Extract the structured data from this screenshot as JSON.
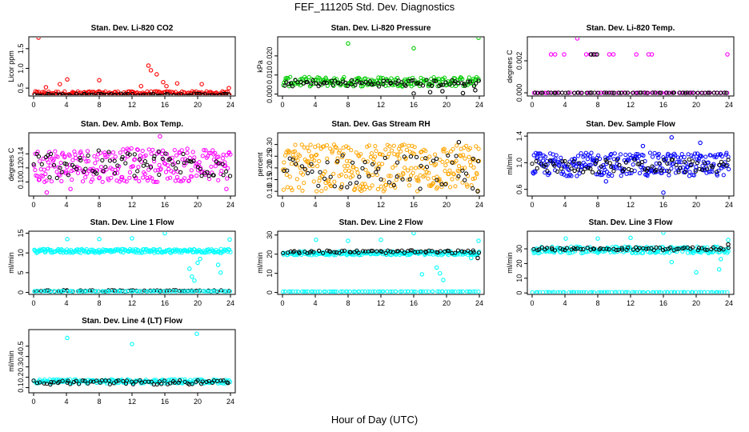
{
  "title": "FEF_111205  Std. Dev. Diagnostics",
  "x_caption": "Hour of Day (UTC)",
  "colors": {
    "co2": "#ff0000",
    "pressure": "#00cc00",
    "temp": "#ff00ff",
    "box": "#ff00ff",
    "rh": "#ffa500",
    "flow": "#0000ff",
    "line": "#00ffff",
    "ref": "#000000"
  },
  "chart_data": [
    {
      "id": "co2",
      "type": "scatter",
      "title": "Stan. Dev. Li-820 CO2",
      "ylabel": "Licor ppm",
      "xlim": [
        0,
        24
      ],
      "xticks": [
        0,
        4,
        8,
        12,
        16,
        20,
        24
      ],
      "ylim": [
        0.3,
        1.8
      ],
      "yticks": [
        0.5,
        1.0,
        1.5
      ],
      "ytick_labels": [
        "0.5",
        "1.0",
        "1.5"
      ],
      "series": [
        {
          "color": "co2",
          "noise": {
            "type": "band",
            "lo": 0.32,
            "hi": 0.42,
            "n": 180
          },
          "outliers": [
            [
              0.6,
              1.78
            ],
            [
              1.5,
              0.52
            ],
            [
              3.2,
              0.6
            ],
            [
              4.1,
              0.72
            ],
            [
              8.0,
              0.7
            ],
            [
              13.1,
              0.55
            ],
            [
              14.0,
              1.07
            ],
            [
              14.3,
              0.95
            ],
            [
              15.0,
              0.85
            ],
            [
              15.8,
              0.65
            ],
            [
              16.2,
              0.55
            ],
            [
              17.5,
              0.62
            ],
            [
              20.5,
              0.6
            ],
            [
              23.8,
              0.5
            ]
          ]
        },
        {
          "color": "ref",
          "noise": {
            "type": "band",
            "lo": 0.3,
            "hi": 0.36,
            "n": 90
          },
          "outliers": []
        }
      ]
    },
    {
      "id": "pressure",
      "type": "scatter",
      "title": "Stan. Dev. Li-820 Pressure",
      "ylabel": "kPa",
      "xlim": [
        0,
        24
      ],
      "xticks": [
        0,
        4,
        8,
        12,
        16,
        20,
        24
      ],
      "ylim": [
        -0.001,
        0.03
      ],
      "yticks": [
        0.0,
        0.01,
        0.02
      ],
      "ytick_labels": [
        "0.000",
        "0.010",
        "0.020"
      ],
      "series": [
        {
          "color": "pressure",
          "noise": {
            "type": "band",
            "lo": 0.004,
            "hi": 0.009,
            "n": 200
          },
          "outliers": [
            [
              8.0,
              0.0265
            ],
            [
              16.0,
              0.024
            ],
            [
              23.9,
              0.0295
            ]
          ]
        },
        {
          "color": "ref",
          "noise": {
            "type": "band",
            "lo": 0.004,
            "hi": 0.0075,
            "n": 80
          },
          "outliers": [
            [
              16.0,
              0.0003
            ],
            [
              18.0,
              0.001
            ],
            [
              19.5,
              0.0015
            ],
            [
              22.0,
              0.0005
            ],
            [
              23.5,
              0.002
            ]
          ]
        }
      ]
    },
    {
      "id": "temp",
      "type": "scatter",
      "title": "Stan. Dev. Li-820 Temp.",
      "ylabel": "degrees C",
      "xlim": [
        0,
        24
      ],
      "xticks": [
        0,
        4,
        8,
        12,
        16,
        20,
        24
      ],
      "ylim": [
        -0.0002,
        0.0035
      ],
      "yticks": [
        0.0,
        0.002
      ],
      "ytick_labels": [
        "0.000",
        "0.002"
      ],
      "series": [
        {
          "color": "temp",
          "noise": {
            "type": "line",
            "y": 0.0,
            "n": 60
          },
          "outliers": [
            [
              2.3,
              0.0024
            ],
            [
              2.8,
              0.0024
            ],
            [
              3.9,
              0.0024
            ],
            [
              5.5,
              0.0034
            ],
            [
              6.6,
              0.0024
            ],
            [
              7.1,
              0.0024
            ],
            [
              7.7,
              0.0024
            ],
            [
              9.4,
              0.0024
            ],
            [
              9.9,
              0.0024
            ],
            [
              12.7,
              0.0024
            ],
            [
              14.2,
              0.0024
            ],
            [
              14.6,
              0.0024
            ],
            [
              23.8,
              0.0024
            ]
          ]
        },
        {
          "color": "ref",
          "noise": {
            "type": "line",
            "y": 0.0,
            "n": 60
          },
          "outliers": [
            [
              7.2,
              0.0024
            ],
            [
              7.5,
              0.0024
            ],
            [
              7.9,
              0.0024
            ]
          ]
        }
      ]
    },
    {
      "id": "box",
      "type": "scatter",
      "title": "Stan. Dev. Amb. Box Temp.",
      "ylabel": "degrees C",
      "xlim": [
        0,
        24
      ],
      "xticks": [
        0,
        4,
        8,
        12,
        16,
        20,
        24
      ],
      "ylim": [
        0.08,
        0.17
      ],
      "yticks": [
        0.1,
        0.12,
        0.14
      ],
      "ytick_labels": [
        "0.10",
        "0.12",
        "0.14"
      ],
      "series": [
        {
          "color": "box",
          "noise": {
            "type": "band",
            "lo": 0.1,
            "hi": 0.148,
            "n": 260
          },
          "outliers": [
            [
              1.6,
              0.085
            ],
            [
              4.5,
              0.09
            ],
            [
              15.4,
              0.165
            ],
            [
              23.5,
              0.09
            ]
          ]
        },
        {
          "color": "ref",
          "noise": {
            "type": "band",
            "lo": 0.105,
            "hi": 0.145,
            "n": 80
          },
          "outliers": []
        }
      ]
    },
    {
      "id": "rh",
      "type": "scatter",
      "title": "Stan. Dev. Gas Stream RH",
      "ylabel": "percent",
      "xlim": [
        0,
        24
      ],
      "xticks": [
        0,
        4,
        8,
        12,
        16,
        20,
        24
      ],
      "ylim": [
        0.08,
        0.35
      ],
      "yticks": [
        0.1,
        0.15,
        0.2,
        0.25,
        0.3
      ],
      "ytick_labels": [
        "0.10",
        "0.15",
        "0.20",
        "0.25",
        "0.30"
      ],
      "series": [
        {
          "color": "rh",
          "noise": {
            "type": "band",
            "lo": 0.1,
            "hi": 0.3,
            "n": 300
          },
          "outliers": []
        },
        {
          "color": "ref",
          "noise": {
            "type": "band",
            "lo": 0.11,
            "hi": 0.26,
            "n": 60
          },
          "outliers": [
            [
              21.5,
              0.31
            ],
            [
              23.8,
              0.1
            ]
          ]
        }
      ]
    },
    {
      "id": "sample",
      "type": "scatter",
      "title": "Stan. Dev. Sample Flow",
      "ylabel": "ml/min",
      "xlim": [
        0,
        24
      ],
      "xticks": [
        0,
        4,
        8,
        12,
        16,
        20,
        24
      ],
      "ylim": [
        0.5,
        1.45
      ],
      "yticks": [
        0.6,
        1.0,
        1.4
      ],
      "ytick_labels": [
        "0.6",
        "1.0",
        "1.4"
      ],
      "series": [
        {
          "color": "flow",
          "noise": {
            "type": "band",
            "lo": 0.8,
            "hi": 1.15,
            "n": 280
          },
          "outliers": [
            [
              16.0,
              0.55
            ],
            [
              17.0,
              1.38
            ],
            [
              13.5,
              1.25
            ],
            [
              20.5,
              1.3
            ],
            [
              9.0,
              0.72
            ]
          ]
        },
        {
          "color": "ref",
          "noise": {
            "type": "band",
            "lo": 0.85,
            "hi": 1.05,
            "n": 80
          },
          "outliers": []
        }
      ]
    },
    {
      "id": "line1",
      "type": "scatter",
      "title": "Stan. Dev. Line 1 Flow",
      "ylabel": "ml/min",
      "xlim": [
        0,
        24
      ],
      "xticks": [
        0,
        4,
        8,
        12,
        16,
        20,
        24
      ],
      "ylim": [
        -0.5,
        15.5
      ],
      "yticks": [
        0,
        5,
        10,
        15
      ],
      "ytick_labels": [
        "0",
        "5",
        "10",
        "15"
      ],
      "series": [
        {
          "color": "line",
          "noise": {
            "type": "band",
            "lo": 10.0,
            "hi": 11.0,
            "n": 220
          },
          "outliers": [
            [
              4.1,
              13.5
            ],
            [
              8.0,
              13.5
            ],
            [
              12.0,
              13.7
            ],
            [
              16.0,
              15.0
            ],
            [
              19.0,
              6.0
            ],
            [
              19.3,
              4.0
            ],
            [
              19.6,
              3.0
            ],
            [
              20.0,
              7.5
            ],
            [
              20.3,
              8.5
            ],
            [
              22.5,
              7.0
            ],
            [
              22.8,
              5.0
            ],
            [
              23.9,
              13.4
            ]
          ]
        },
        {
          "color": "ref",
          "noise": {
            "type": "band",
            "lo": 0.2,
            "hi": 0.6,
            "n": 70
          },
          "outliers": []
        },
        {
          "color": "line",
          "noise": {
            "type": "line",
            "y": 0.3,
            "n": 80
          },
          "outliers": []
        }
      ]
    },
    {
      "id": "line2",
      "type": "scatter",
      "title": "Stan. Dev. Line 2 Flow",
      "ylabel": "ml/min",
      "xlim": [
        0,
        24
      ],
      "xticks": [
        0,
        4,
        8,
        12,
        16,
        20,
        24
      ],
      "ylim": [
        -1,
        32
      ],
      "yticks": [
        0,
        10,
        20,
        30
      ],
      "ytick_labels": [
        "0",
        "10",
        "20",
        "30"
      ],
      "series": [
        {
          "color": "line",
          "noise": {
            "type": "band",
            "lo": 19.5,
            "hi": 21.5,
            "n": 220
          },
          "outliers": [
            [
              4.1,
              27.5
            ],
            [
              8.0,
              27.0
            ],
            [
              12.0,
              27.5
            ],
            [
              16.0,
              31.0
            ],
            [
              17.0,
              9.5
            ],
            [
              18.8,
              13.0
            ],
            [
              19.2,
              10.0
            ],
            [
              19.6,
              6.5
            ],
            [
              23.0,
              18.0
            ],
            [
              23.9,
              27.0
            ]
          ]
        },
        {
          "color": "ref",
          "noise": {
            "type": "band",
            "lo": 20.5,
            "hi": 22.0,
            "n": 70
          },
          "outliers": [
            [
              23.8,
              18.0
            ]
          ]
        },
        {
          "color": "line",
          "noise": {
            "type": "line",
            "y": 0.5,
            "n": 80
          },
          "outliers": []
        }
      ]
    },
    {
      "id": "line3",
      "type": "scatter",
      "title": "Stan. Dev. Line 3 Flow",
      "ylabel": "ml/min",
      "xlim": [
        0,
        24
      ],
      "xticks": [
        0,
        4,
        8,
        12,
        16,
        20,
        24
      ],
      "ylim": [
        -1,
        42
      ],
      "yticks": [
        0,
        10,
        20,
        30
      ],
      "ytick_labels": [
        "0",
        "10",
        "20",
        "30"
      ],
      "series": [
        {
          "color": "line",
          "noise": {
            "type": "band",
            "lo": 27.0,
            "hi": 31.5,
            "n": 220
          },
          "outliers": [
            [
              4.1,
              37.0
            ],
            [
              8.0,
              37.0
            ],
            [
              12.0,
              37.5
            ],
            [
              16.0,
              41.0
            ],
            [
              17.0,
              21.0
            ],
            [
              20.0,
              14.0
            ],
            [
              23.0,
              23.0
            ],
            [
              22.8,
              16.0
            ],
            [
              23.9,
              36.0
            ]
          ]
        },
        {
          "color": "ref",
          "noise": {
            "type": "band",
            "lo": 29.0,
            "hi": 31.0,
            "n": 70
          },
          "outliers": [
            [
              23.9,
              33.0
            ]
          ]
        },
        {
          "color": "line",
          "noise": {
            "type": "line",
            "y": 0.5,
            "n": 80
          },
          "outliers": []
        }
      ]
    },
    {
      "id": "line4",
      "type": "scatter",
      "title": "Stan. Dev. Line 4 (LT) Flow",
      "ylabel": "ml/min",
      "xlim": [
        0,
        24
      ],
      "xticks": [
        0,
        4,
        8,
        12,
        16,
        20,
        24
      ],
      "ylim": [
        0.05,
        0.66
      ],
      "yticks": [
        0.1,
        0.2,
        0.3,
        0.4,
        0.5
      ],
      "ytick_labels": [
        "0.1",
        "0.2",
        "0.3",
        "0.4",
        "0.5"
      ],
      "series": [
        {
          "color": "line",
          "noise": {
            "type": "band",
            "lo": 0.14,
            "hi": 0.18,
            "n": 200
          },
          "outliers": [
            [
              4.1,
              0.58
            ],
            [
              12.0,
              0.52
            ],
            [
              19.9,
              0.62
            ]
          ]
        },
        {
          "color": "ref",
          "noise": {
            "type": "band",
            "lo": 0.13,
            "hi": 0.17,
            "n": 70
          },
          "outliers": []
        }
      ]
    }
  ]
}
